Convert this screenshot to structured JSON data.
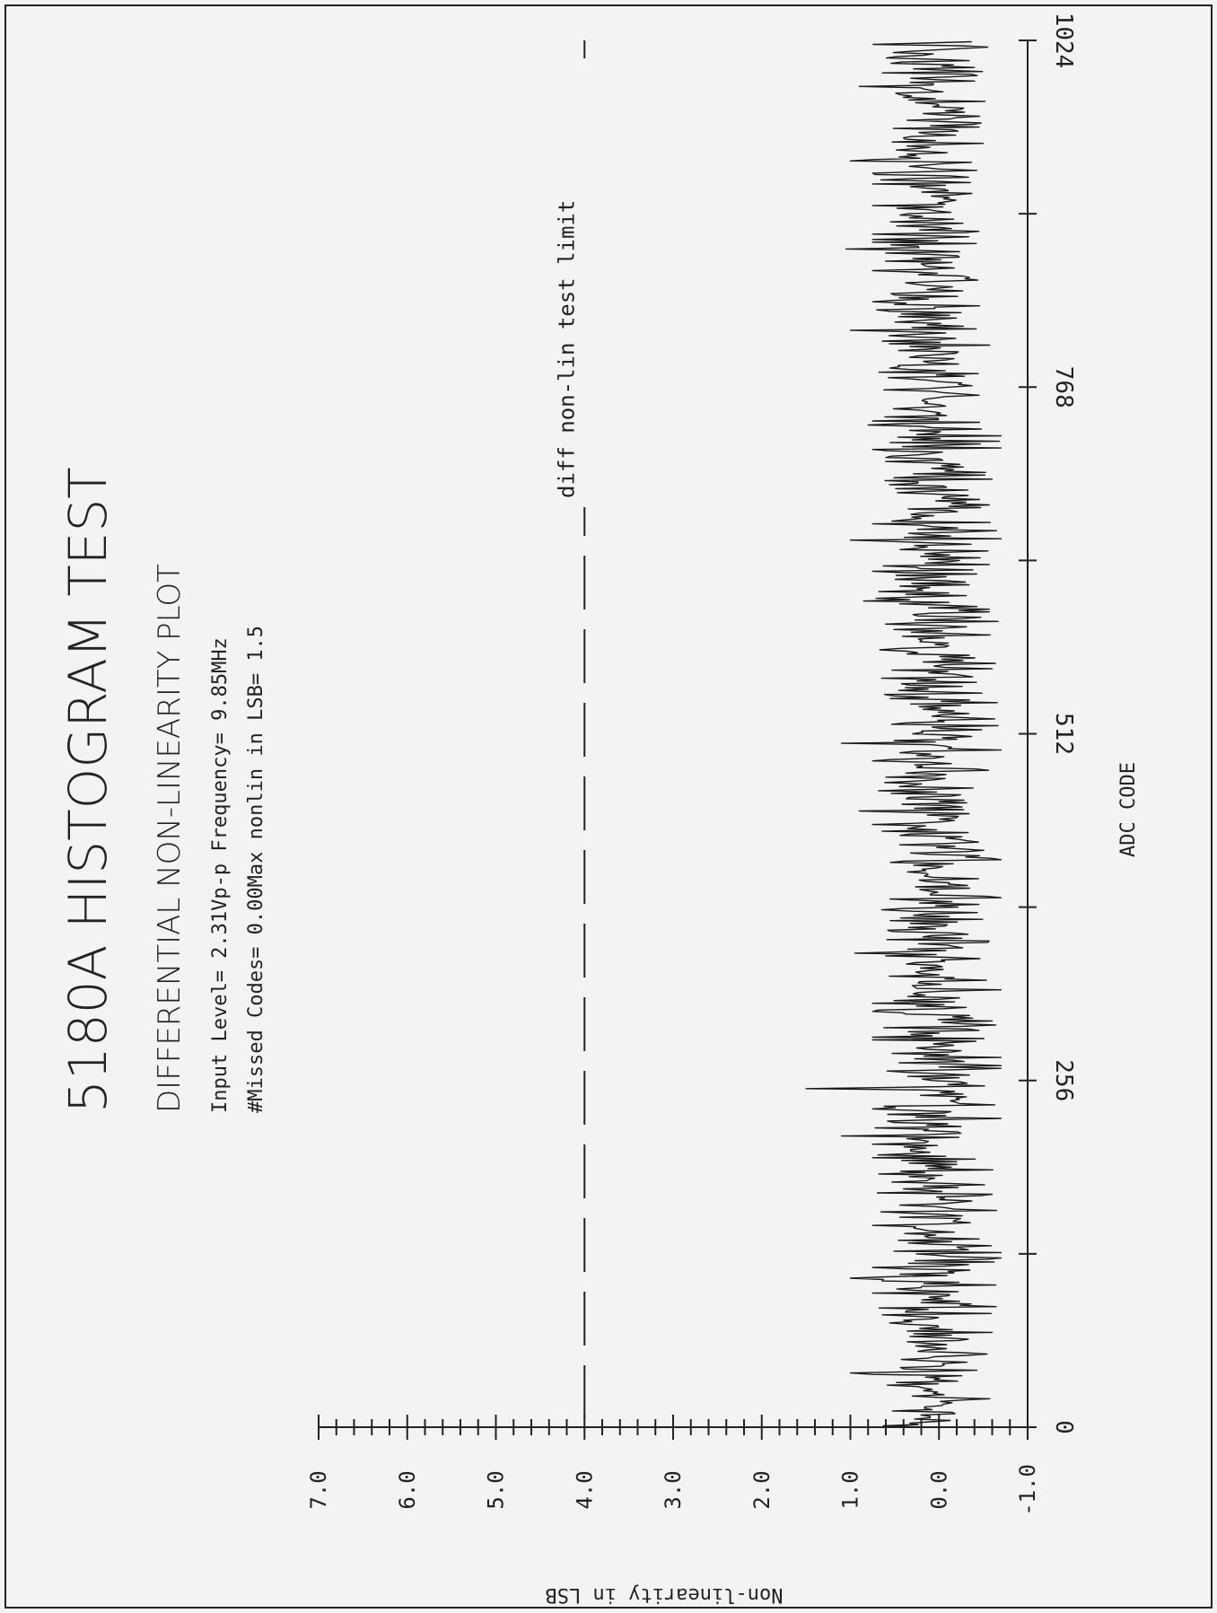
{
  "chart_data": {
    "type": "line",
    "title": "5180A HISTOGRAM TEST",
    "subtitle": "DIFFERENTIAL NON-LINEARITY PLOT",
    "info_line_1": "Input Level= 2.31Vp-p Frequency= 9.85MHz",
    "info_line_2": "#Missed Codes= 0.00Max nonlin in LSB= 1.5",
    "xlabel": "ADC CODE",
    "ylabel": "Non-linearity in LSB",
    "xlim": [
      0,
      1024
    ],
    "ylim": [
      -1.0,
      7.0
    ],
    "x_tick_labels": [
      "0",
      "256",
      "512",
      "768",
      "1024"
    ],
    "x_tick_values": [
      0,
      256,
      512,
      768,
      1024
    ],
    "y_tick_labels": [
      "-1.0",
      "0.0",
      "1.0",
      "2.0",
      "3.0",
      "4.0",
      "5.0",
      "6.0",
      "7.0"
    ],
    "y_tick_values": [
      -1,
      0,
      1,
      2,
      3,
      4,
      5,
      6,
      7
    ],
    "limit_line": {
      "value": 4.0,
      "label": "diff non-lin test limit"
    },
    "series": [
      {
        "noise_band_lsb": [
          -0.7,
          0.75
        ],
        "max_abs_lsb": 1.5,
        "n_points": 1024,
        "spikes": [
          {
            "x": 40,
            "y": 1.0
          },
          {
            "x": 70,
            "y": -0.6
          },
          {
            "x": 110,
            "y": 1.0
          },
          {
            "x": 160,
            "y": -0.65
          },
          {
            "x": 215,
            "y": 1.1
          },
          {
            "x": 250,
            "y": 1.5
          },
          {
            "x": 300,
            "y": -0.6
          },
          {
            "x": 350,
            "y": 0.95
          },
          {
            "x": 420,
            "y": -0.6
          },
          {
            "x": 455,
            "y": 0.9
          },
          {
            "x": 505,
            "y": 1.1
          },
          {
            "x": 560,
            "y": -0.6
          },
          {
            "x": 610,
            "y": 0.85
          },
          {
            "x": 655,
            "y": 1.0
          },
          {
            "x": 700,
            "y": -0.6
          },
          {
            "x": 740,
            "y": 0.8
          },
          {
            "x": 810,
            "y": 1.0
          },
          {
            "x": 870,
            "y": 1.05
          },
          {
            "x": 935,
            "y": 1.0
          },
          {
            "x": 990,
            "y": 0.9
          }
        ]
      }
    ]
  }
}
